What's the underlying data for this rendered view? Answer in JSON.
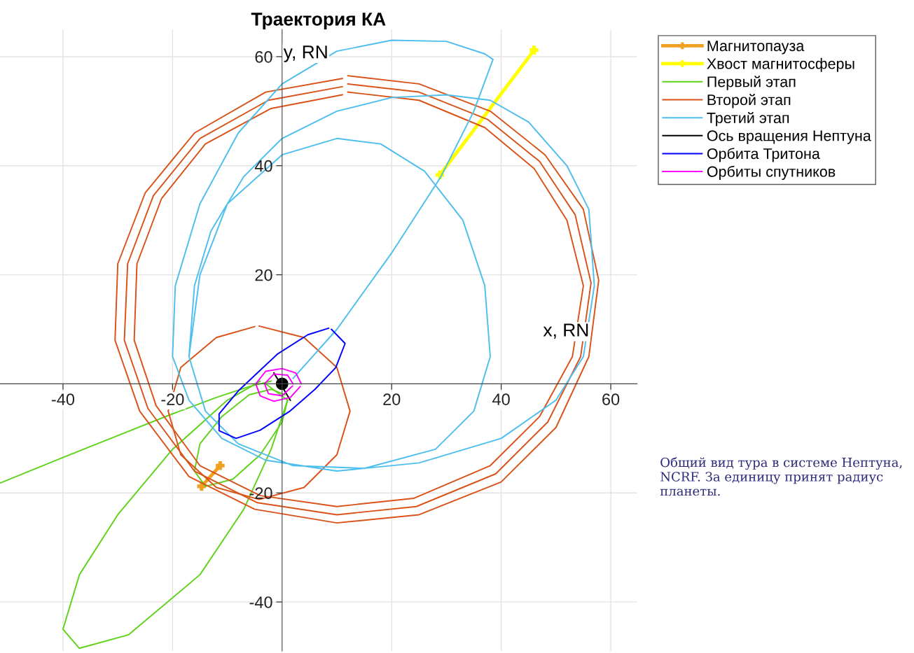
{
  "chart_data": {
    "type": "line",
    "title": "Траектория КА",
    "xlabel": "x, RN",
    "ylabel": "y, RN",
    "xlim": [
      -51.5,
      64.8
    ],
    "ylim": [
      -49,
      65
    ],
    "xticks": [
      -40,
      -20,
      20,
      40,
      60
    ],
    "yticks": [
      -40,
      -20,
      20,
      40,
      60
    ],
    "grid": true,
    "legend": "top right",
    "annotations": [
      "Общий вид тура в системе Нептуна, NCRF. За единицу принят радиус планеты."
    ],
    "series": [
      {
        "name": "Магнитопауза",
        "color": "#f0a020",
        "marker": "cross",
        "x": [
          -14.7,
          -11.3
        ],
        "values": [
          -18.8,
          -15
        ]
      },
      {
        "name": "Хвост магнитосферы",
        "color": "#ffff00",
        "marker": "cross",
        "x": [
          28.8,
          46
        ],
        "values": [
          38.3,
          61.2
        ]
      },
      {
        "name": "Первый этап",
        "color": "#5fd31a",
        "x": [
          -51.5,
          -40,
          -30,
          -20,
          -12,
          -6,
          -2
        ],
        "values": [
          -18.2,
          -13.5,
          -9.5,
          -5.5,
          -2.5,
          -0.5,
          0.5
        ]
      },
      {
        "color": "#5fd31a",
        "x": [
          1,
          0,
          -4,
          -9,
          -14,
          -16,
          -15,
          -11,
          -6,
          -2,
          0.5
        ],
        "values": [
          -3,
          -7,
          -13,
          -17.5,
          -18.8,
          -16,
          -11,
          -6,
          -2,
          -1,
          -2
        ]
      },
      {
        "color": "#5fd31a",
        "x": [
          -3,
          1,
          -2,
          -7,
          -15,
          -28,
          -37,
          -40,
          -37,
          -30,
          -20,
          -10,
          -4
        ],
        "values": [
          0,
          -3,
          -12,
          -23,
          -35,
          -46,
          -48.5,
          -45,
          -35,
          -24,
          -12,
          -3,
          0.5
        ]
      },
      {
        "name": "Второй этап",
        "color": "#d95319",
        "x": [
          12,
          25,
          38,
          48,
          55,
          57.8,
          56,
          50,
          40,
          25,
          10,
          -5,
          -17,
          -26,
          -30.5,
          -30,
          -25,
          -16,
          -3,
          11
        ],
        "values": [
          56.5,
          55,
          50,
          42,
          32,
          19,
          5,
          -8,
          -18,
          -24,
          -25.5,
          -23,
          -17,
          -5,
          8,
          22,
          35,
          46,
          53.5,
          56
        ]
      },
      {
        "color": "#d95319",
        "x": [
          12,
          25,
          37.5,
          47,
          53.5,
          56.4,
          54.5,
          48.5,
          39,
          24.5,
          10,
          -4.5,
          -16,
          -24.5,
          -28.8,
          -28.2,
          -23.5,
          -15,
          -2.5,
          11
        ],
        "values": [
          55,
          53.5,
          48.5,
          40.8,
          31,
          18.5,
          5,
          -7,
          -16.5,
          -22.5,
          -24,
          -21.8,
          -16,
          -4.5,
          8,
          22,
          34.5,
          45,
          52,
          54.5
        ]
      },
      {
        "color": "#d95319",
        "x": [
          12,
          25,
          37,
          46,
          52,
          55,
          53,
          47,
          38,
          24,
          10,
          -4,
          -15,
          -23,
          -27,
          -26.5,
          -22,
          -14,
          -2,
          11
        ],
        "values": [
          53.5,
          52,
          47,
          39.5,
          30,
          18,
          5,
          -6,
          -15,
          -21,
          -22.5,
          -20.5,
          -15,
          -4,
          8,
          22,
          34,
          44,
          50.5,
          53
        ]
      },
      {
        "color": "#d95319",
        "x": [
          -4.2,
          4,
          10,
          12.4,
          10,
          4,
          -4.2,
          -12,
          -18.5,
          -20.8,
          -18.5,
          -12,
          -5
        ],
        "values": [
          10.6,
          8.5,
          3,
          -5,
          -13,
          -19,
          -21.2,
          -19,
          -13,
          -5,
          3,
          8.5,
          10.5
        ]
      },
      {
        "name": "Третий этап",
        "color": "#4dbeee",
        "x": [
          2,
          10,
          20,
          29,
          35,
          38.5,
          37,
          30,
          20,
          10,
          0,
          -8,
          -15,
          -19.5,
          -20,
          -17,
          -11,
          -3,
          10,
          25,
          40,
          50,
          55,
          57,
          56,
          52,
          45,
          38,
          30,
          20,
          10,
          0,
          -7,
          -13,
          -16,
          -17,
          -14,
          -8,
          2,
          15,
          28,
          35,
          38,
          37,
          33,
          26,
          18,
          10,
          0,
          -10,
          -15,
          -17
        ],
        "values": [
          1,
          10,
          24,
          38,
          50,
          59.5,
          60.5,
          62.8,
          63,
          61,
          55,
          46,
          33,
          18,
          5,
          -3,
          -10,
          -14,
          -16,
          -14.5,
          -10,
          -3,
          5,
          18,
          32,
          40,
          48,
          52,
          53,
          52.5,
          50,
          45,
          38,
          28,
          18,
          5,
          -5,
          -11,
          -15,
          -15.5,
          -12,
          -5,
          5,
          18,
          30,
          39,
          44,
          45,
          42,
          33,
          20,
          5
        ]
      },
      {
        "name": "Ось вращения Нептуна",
        "color": "#000000",
        "x": [
          -1.5,
          1.5
        ],
        "values": [
          2,
          -3
        ]
      },
      {
        "name": "Орбита Тритона",
        "color": "#0000ff",
        "x": [
          9,
          11.5,
          9.8,
          6,
          1.3,
          -4,
          -8.4,
          -11.5,
          -11.5,
          -8,
          -4,
          -0.8,
          4.7,
          8.5
        ],
        "values": [
          10,
          7.4,
          3,
          -1,
          -5.1,
          -8.5,
          -10,
          -8.6,
          -5.5,
          -1.3,
          2.5,
          5.5,
          9,
          10.2
        ]
      },
      {
        "name": "Орбиты спутников",
        "color": "#ff00ff",
        "x": [
          3.5,
          2.5,
          0,
          -3,
          -4.8,
          -4,
          -1.5,
          1.5,
          3.3
        ],
        "values": [
          0,
          2,
          2.8,
          2.3,
          0,
          -2.2,
          -3.2,
          -2.5,
          -0.5
        ]
      },
      {
        "color": "#ff00ff",
        "x": [
          2,
          1,
          -1.5,
          -3.2,
          -2.5,
          0,
          1.9
        ],
        "values": [
          0,
          1.6,
          1.8,
          0,
          -1.8,
          -2.2,
          -0.4
        ]
      },
      {
        "type": "scatter",
        "color": "#000000",
        "x": [
          0
        ],
        "values": [
          0
        ]
      }
    ]
  }
}
